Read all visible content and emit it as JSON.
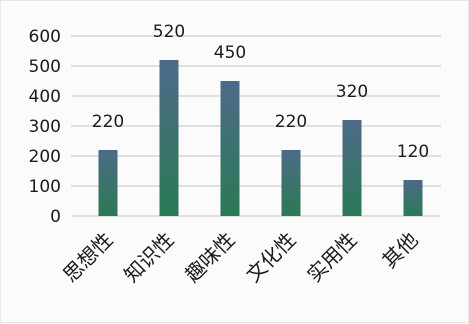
{
  "chart_data": {
    "type": "bar",
    "categories": [
      "思想性",
      "知识性",
      "趣味性",
      "文化性",
      "实用性",
      "其他"
    ],
    "values": [
      220,
      520,
      450,
      220,
      320,
      120
    ],
    "data_labels": [
      "220",
      "520",
      "450",
      "220",
      "320",
      "120"
    ],
    "title": "",
    "xlabel": "",
    "ylabel": "",
    "ylim": [
      0,
      600
    ],
    "yticks": [
      0,
      100,
      200,
      300,
      400,
      500,
      600
    ],
    "grid": true,
    "legend": "none",
    "colors": {
      "bar_top": "#4d6a88",
      "bar_bottom": "#2a7a55",
      "gridline": "#c4c4c4",
      "text": "#1c1c1c"
    }
  }
}
